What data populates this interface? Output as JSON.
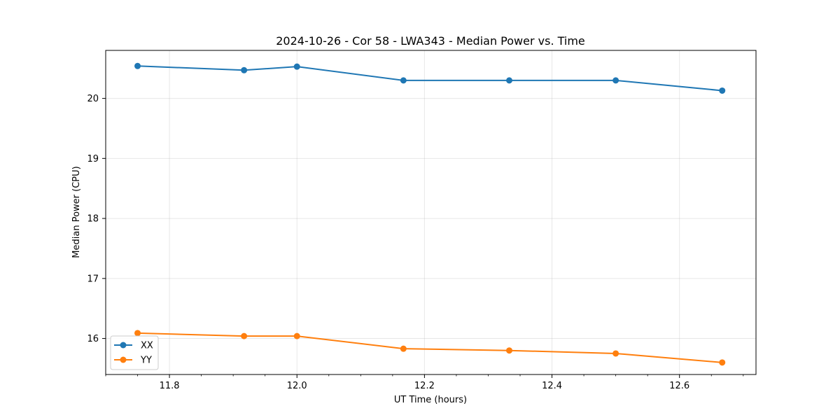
{
  "chart_data": {
    "type": "line",
    "title": "2024-10-26 - Cor 58 - LWA343 - Median Power vs. Time",
    "xlabel": "UT Time (hours)",
    "ylabel": "Median Power (CPU)",
    "x": [
      11.75,
      11.917,
      12.0,
      12.167,
      12.333,
      12.5,
      12.667
    ],
    "series": [
      {
        "name": "XX",
        "color": "#1f77b4",
        "values": [
          20.54,
          20.47,
          20.53,
          20.3,
          20.3,
          20.3,
          20.13
        ]
      },
      {
        "name": "YY",
        "color": "#ff7f0e",
        "values": [
          16.09,
          16.04,
          16.04,
          15.83,
          15.8,
          15.75,
          15.6
        ]
      }
    ],
    "xlim": [
      11.7,
      12.72
    ],
    "ylim": [
      15.4,
      20.8
    ],
    "xticks": [
      11.8,
      12.0,
      12.2,
      12.4,
      12.6
    ],
    "xtick_labels": [
      "11.8",
      "12.0",
      "12.2",
      "12.4",
      "12.6"
    ],
    "yticks": [
      16,
      17,
      18,
      19,
      20
    ],
    "ytick_labels": [
      "16",
      "17",
      "18",
      "19",
      "20"
    ],
    "grid": true,
    "legend_position": "lower-left"
  }
}
